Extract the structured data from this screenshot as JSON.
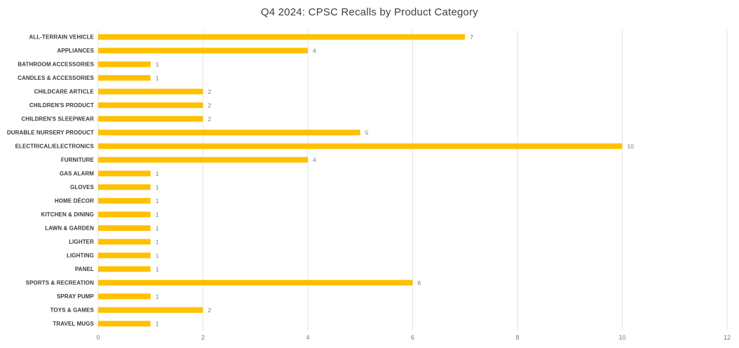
{
  "title": "Q4 2024: CPSC Recalls by Product Category",
  "colors": {
    "background": "#FFFFFF",
    "bar": "#FFC000",
    "gridline": "#EAE2E0",
    "axis_line": "#EAE2E0",
    "category_label": "#3A3A3A",
    "value_label": "#8A7265",
    "tick_label": "#8A7265",
    "title": "#3F3F3F"
  },
  "chart_data": {
    "type": "bar",
    "orientation": "horizontal",
    "title": "Q4 2024: CPSC Recalls by Product Category",
    "xlabel": "",
    "ylabel": "",
    "xlim": [
      0,
      12
    ],
    "xticks": [
      0,
      2,
      4,
      6,
      8,
      10,
      12
    ],
    "grid": "vertical",
    "legend": "none",
    "data_labels": true,
    "categories": [
      "ALL-TERRAIN VEHICLE",
      "APPLIANCES",
      "BATHROOM ACCESSORIES",
      "CANDLES & ACCESSORIES",
      "CHILDCARE ARTICLE",
      "CHILDREN'S PRODUCT",
      "CHILDREN'S SLEEPWEAR",
      "DURABLE NURSERY PRODUCT",
      "ELECTRICAL/ELECTRONICS",
      "FURNITURE",
      "GAS ALARM",
      "GLOVES",
      "HOME DÉCOR",
      "KITCHEN & DINING",
      "LAWN & GARDEN",
      "LIGHTER",
      "LIGHTING",
      "PANEL",
      "SPORTS & RECREATION",
      "SPRAY PUMP",
      "TOYS & GAMES",
      "TRAVEL MUGS"
    ],
    "values": [
      7,
      4,
      1,
      1,
      2,
      2,
      2,
      5,
      10,
      4,
      1,
      1,
      1,
      1,
      1,
      1,
      1,
      1,
      6,
      1,
      2,
      1
    ]
  }
}
